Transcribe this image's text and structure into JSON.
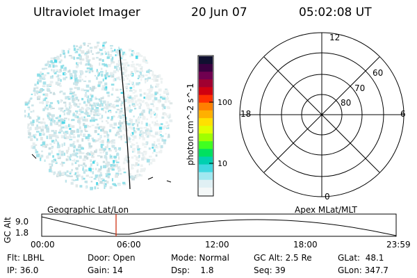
{
  "header": {
    "title": "Ultraviolet Imager",
    "date": "20 Jun 07",
    "time": "05:02:08 UT"
  },
  "colorbar": {
    "label": "photon cm^-2 s^-1",
    "tick_100": "100",
    "tick_10": "10",
    "colors": [
      "#101030",
      "#3a0040",
      "#700050",
      "#a00030",
      "#d00010",
      "#ff3000",
      "#ff8000",
      "#ffb000",
      "#ffe000",
      "#e0ff00",
      "#a0ff00",
      "#40ff20",
      "#00e060",
      "#00d0b0",
      "#40d8e0",
      "#a0e8f0",
      "#e0f0f4",
      "#f4f8f8"
    ]
  },
  "polar": {
    "labels": {
      "top": "12",
      "bottom": "0",
      "left": "18",
      "right": "6"
    },
    "rings": [
      "60",
      "70",
      "80"
    ]
  },
  "timeline": {
    "ylabel": "GC Alt",
    "y_top": "9.0",
    "y_bottom": "1.8",
    "left_caption": "Geographic Lat/Lon",
    "right_caption": "Apex MLat/MLT",
    "ticks": [
      "00:00",
      "06:00",
      "12:00",
      "18:00",
      "23:59"
    ]
  },
  "info": {
    "flt": "Flt: LBHL",
    "ip": "IP: 36.0",
    "door": "Door: Open",
    "gain": "Gain: 14",
    "mode": "Mode: Normal",
    "dsp": "Dsp:    1.8",
    "gcalt": "GC Alt: 2.5 Re",
    "seq": "Seq: 39",
    "glat": "GLat:  48.1",
    "glon": "GLon: 347.7"
  }
}
